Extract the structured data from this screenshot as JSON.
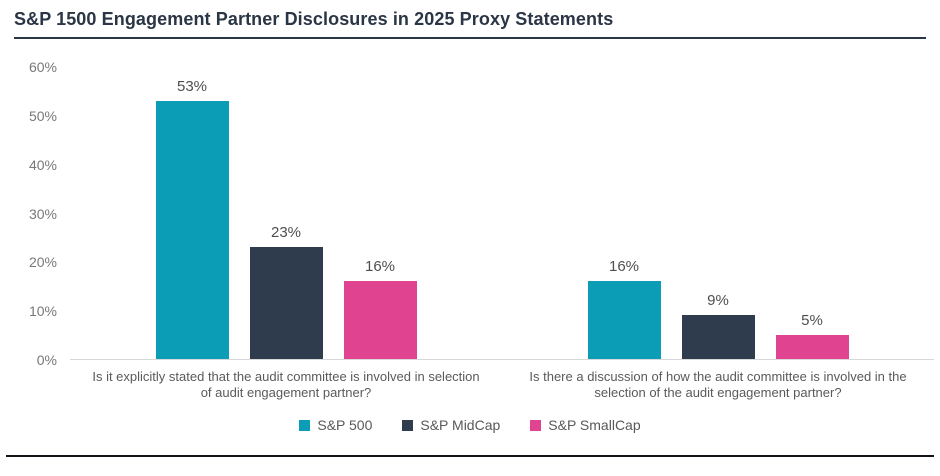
{
  "title": "S&P 1500 Engagement Partner Disclosures in 2025 Proxy Statements",
  "chart_data": {
    "type": "bar",
    "title": "S&P 1500 Engagement Partner Disclosures in 2025 Proxy Statements",
    "categories": [
      "Is it explicitly stated that the audit committee is involved in selection of audit engagement partner?",
      "Is there a discussion of how the audit committee is involved in the selection of the audit engagement partner?"
    ],
    "series": [
      {
        "name": "S&P 500",
        "color": "#0a9db5",
        "values": [
          53,
          16
        ]
      },
      {
        "name": "S&P MidCap",
        "color": "#2e3c4e",
        "values": [
          23,
          9
        ]
      },
      {
        "name": "S&P SmallCap",
        "color": "#e04491",
        "values": [
          16,
          5
        ]
      }
    ],
    "value_suffix": "%",
    "y_tick_labels": [
      "0%",
      "10%",
      "20%",
      "30%",
      "40%",
      "50%",
      "60%"
    ],
    "ylim": [
      0,
      60
    ],
    "grid": false,
    "legend_position": "bottom"
  }
}
